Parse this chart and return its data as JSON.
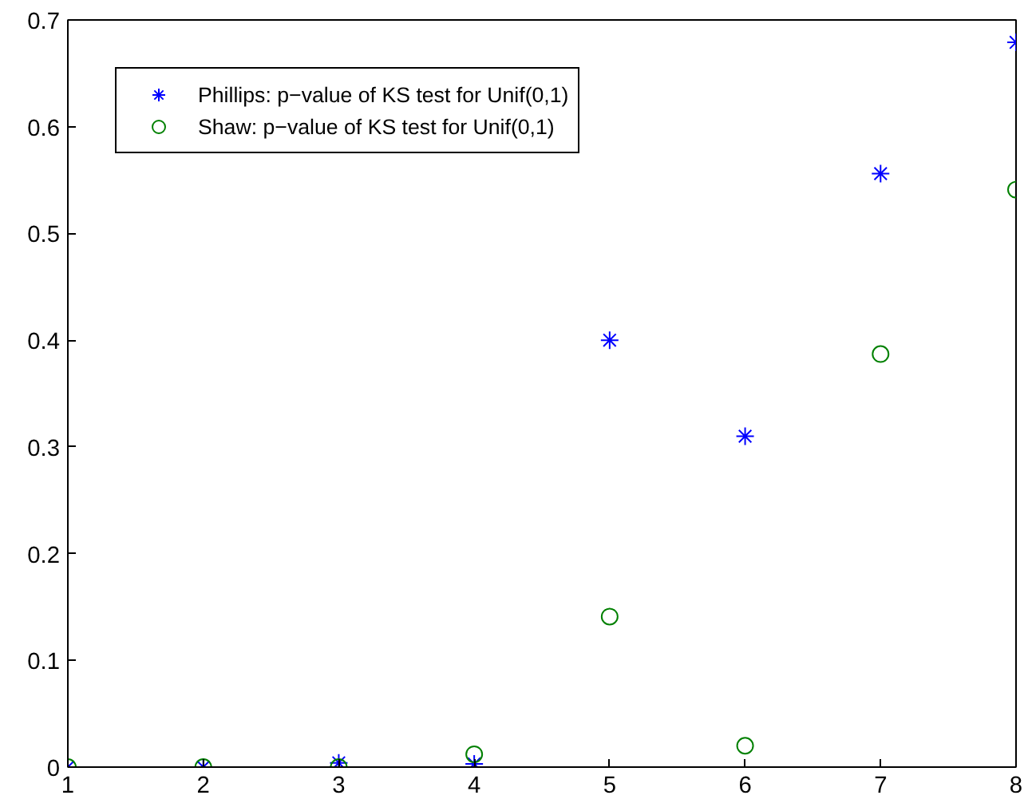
{
  "chart_data": {
    "type": "scatter",
    "x": [
      1,
      2,
      3,
      4,
      5,
      6,
      7,
      8
    ],
    "series": [
      {
        "name": "Phillips: p−value of KS test for Unif(0,1)",
        "color": "#0000ff",
        "marker": "cross",
        "values": [
          0,
          0,
          0.004,
          0.003,
          0.4,
          0.31,
          0.556,
          0.679
        ]
      },
      {
        "name": "Shaw: p−value of KS test for Unif(0,1)",
        "color": "#008000",
        "marker": "circle",
        "values": [
          0,
          0,
          0,
          0.012,
          0.141,
          0.02,
          0.387,
          0.541
        ]
      }
    ],
    "xlim": [
      1,
      8
    ],
    "xticks": [
      1,
      2,
      3,
      4,
      5,
      6,
      7,
      8
    ],
    "ylim": [
      0,
      0.7
    ],
    "yticks": [
      0,
      0.1,
      0.2,
      0.3,
      0.4,
      0.5,
      0.6,
      0.7
    ],
    "legend": "top left",
    "grid": false
  }
}
